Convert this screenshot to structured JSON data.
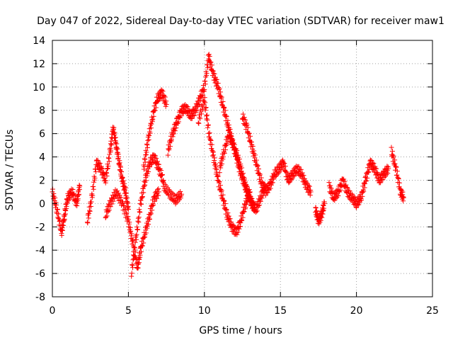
{
  "chart_data": {
    "type": "scatter",
    "title": "Day 047 of 2022, Sidereal Day-to-day VTEC variation (SDTVAR) for receiver maw1",
    "xlabel": "GPS time / hours",
    "ylabel": "SDTVAR / TECUs",
    "xlim": [
      0,
      25
    ],
    "ylim": [
      -8,
      14
    ],
    "xticks": [
      0,
      5,
      10,
      15,
      20,
      25
    ],
    "yticks": [
      -8,
      -6,
      -4,
      -2,
      0,
      2,
      4,
      6,
      8,
      10,
      12,
      14
    ],
    "grid": true,
    "marker": "+",
    "color": "#ff0000",
    "series": [
      {
        "name": "SDTVAR",
        "segments": [
          {
            "x": [
              0.0,
              0.3,
              0.6,
              0.8,
              1.0,
              1.3,
              1.6,
              1.8
            ],
            "y": [
              1.0,
              -0.5,
              -2.5,
              -1.0,
              0.5,
              1.0,
              0.0,
              1.5
            ]
          },
          {
            "x": [
              2.3,
              2.6,
              2.9,
              3.2,
              3.5,
              3.8,
              4.0,
              4.2,
              4.4,
              4.6,
              4.8,
              5.0
            ],
            "y": [
              -1.5,
              0.5,
              3.5,
              3.0,
              2.0,
              4.5,
              6.5,
              5.0,
              3.5,
              2.0,
              1.0,
              -0.5
            ]
          },
          {
            "x": [
              3.5,
              3.8,
              4.2,
              4.6,
              5.0,
              5.3,
              5.6,
              5.8,
              6.1,
              6.4,
              6.7,
              7.0
            ],
            "y": [
              -1.0,
              0.0,
              1.0,
              0.0,
              -1.5,
              -3.5,
              -5.5,
              -4.0,
              -2.5,
              -1.0,
              0.5,
              1.0
            ]
          },
          {
            "x": [
              5.2,
              5.5,
              5.8,
              6.1,
              6.4,
              6.7,
              7.0,
              7.3
            ],
            "y": [
              -6.0,
              -3.0,
              0.0,
              2.0,
              3.5,
              4.0,
              3.0,
              2.0
            ]
          },
          {
            "x": [
              6.0,
              6.3,
              6.6,
              6.9,
              7.2,
              7.5
            ],
            "y": [
              3.0,
              5.5,
              7.5,
              9.0,
              9.5,
              8.5
            ]
          },
          {
            "x": [
              7.6,
              7.9,
              8.2,
              8.5,
              8.8,
              9.1,
              9.4,
              9.7,
              10.0,
              10.3
            ],
            "y": [
              4.5,
              6.0,
              7.0,
              8.0,
              8.2,
              7.5,
              8.0,
              9.0,
              10.0,
              12.8
            ]
          },
          {
            "x": [
              7.3,
              7.7,
              8.1,
              8.5
            ],
            "y": [
              1.5,
              0.8,
              0.3,
              0.8
            ]
          },
          {
            "x": [
              10.3,
              10.6,
              10.9,
              11.2,
              11.5,
              11.8,
              12.1,
              12.4,
              12.7,
              13.0,
              13.3
            ],
            "y": [
              12.5,
              11.0,
              10.0,
              8.5,
              7.0,
              5.5,
              4.0,
              2.5,
              1.5,
              0.5,
              -0.5
            ]
          },
          {
            "x": [
              9.6,
              10.0,
              10.3,
              10.6,
              10.9,
              11.2,
              11.5,
              11.8,
              12.1,
              12.4,
              12.7,
              13.0
            ],
            "y": [
              7.0,
              9.0,
              6.0,
              4.0,
              2.0,
              0.5,
              -1.0,
              -2.0,
              -2.5,
              -1.5,
              0.0,
              1.0
            ]
          },
          {
            "x": [
              11.0,
              11.3,
              11.6,
              11.9,
              12.2,
              12.5,
              12.8,
              13.1,
              13.4,
              13.7,
              14.0
            ],
            "y": [
              3.0,
              4.5,
              6.0,
              5.0,
              4.0,
              2.5,
              1.0,
              0.0,
              -0.5,
              0.5,
              1.5
            ]
          },
          {
            "x": [
              12.5,
              12.8,
              13.1,
              13.4,
              13.7,
              14.0,
              14.3,
              14.6,
              14.9,
              15.2,
              15.5,
              15.8,
              16.1,
              16.4,
              16.7,
              17.0
            ],
            "y": [
              7.5,
              6.5,
              5.0,
              3.5,
              2.0,
              1.0,
              1.5,
              2.5,
              3.0,
              3.5,
              2.0,
              2.5,
              3.0,
              2.5,
              1.5,
              1.0
            ]
          },
          {
            "x": [
              17.3,
              17.5,
              17.7,
              17.9
            ],
            "y": [
              -0.5,
              -1.5,
              -1.0,
              0.0
            ]
          },
          {
            "x": [
              18.2,
              18.5,
              18.8,
              19.1,
              19.4,
              19.7,
              20.0,
              20.3,
              20.6,
              20.9,
              21.2,
              21.5,
              21.8,
              22.1
            ],
            "y": [
              1.5,
              0.5,
              1.0,
              2.0,
              1.0,
              0.5,
              0.0,
              0.5,
              2.0,
              3.5,
              3.0,
              2.0,
              2.5,
              3.0
            ]
          },
          {
            "x": [
              22.3,
              22.6,
              22.9,
              23.1
            ],
            "y": [
              4.5,
              3.0,
              1.0,
              0.5
            ]
          }
        ]
      }
    ]
  }
}
